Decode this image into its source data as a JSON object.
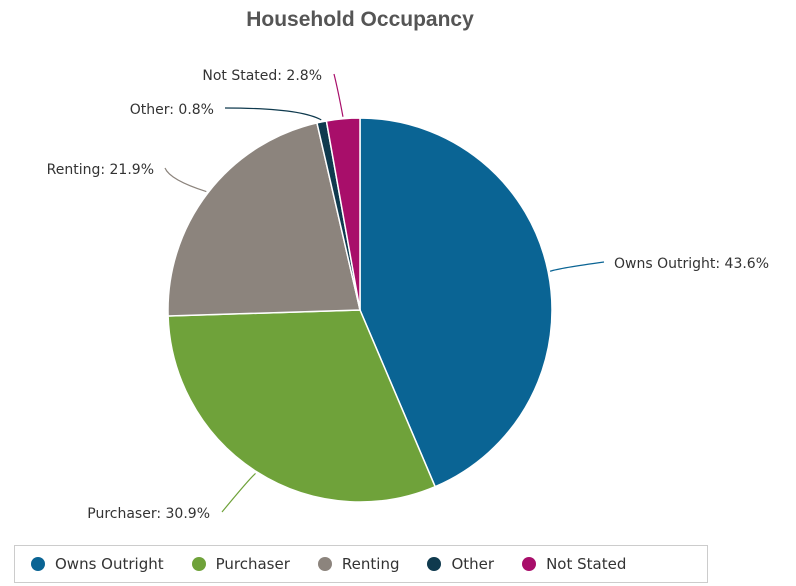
{
  "chart_data": {
    "type": "pie",
    "title": "Household Occupancy",
    "slices": [
      {
        "label": "Owns Outright",
        "value": 43.6,
        "data_label": "Owns Outright: 43.6%",
        "color": "#0a6494"
      },
      {
        "label": "Purchaser",
        "value": 30.9,
        "data_label": "Purchaser: 30.9%",
        "color": "#6fa23a"
      },
      {
        "label": "Renting",
        "value": 21.9,
        "data_label": "Renting: 21.9%",
        "color": "#8c847d"
      },
      {
        "label": "Other",
        "value": 0.8,
        "data_label": "Other: 0.8%",
        "color": "#0f3a4e"
      },
      {
        "label": "Not Stated",
        "value": 2.8,
        "data_label": "Not Stated: 2.8%",
        "color": "#a80e6a"
      }
    ],
    "legend": [
      "Owns Outright",
      "Purchaser",
      "Renting",
      "Other",
      "Not Stated"
    ],
    "legend_position": "bottom"
  }
}
